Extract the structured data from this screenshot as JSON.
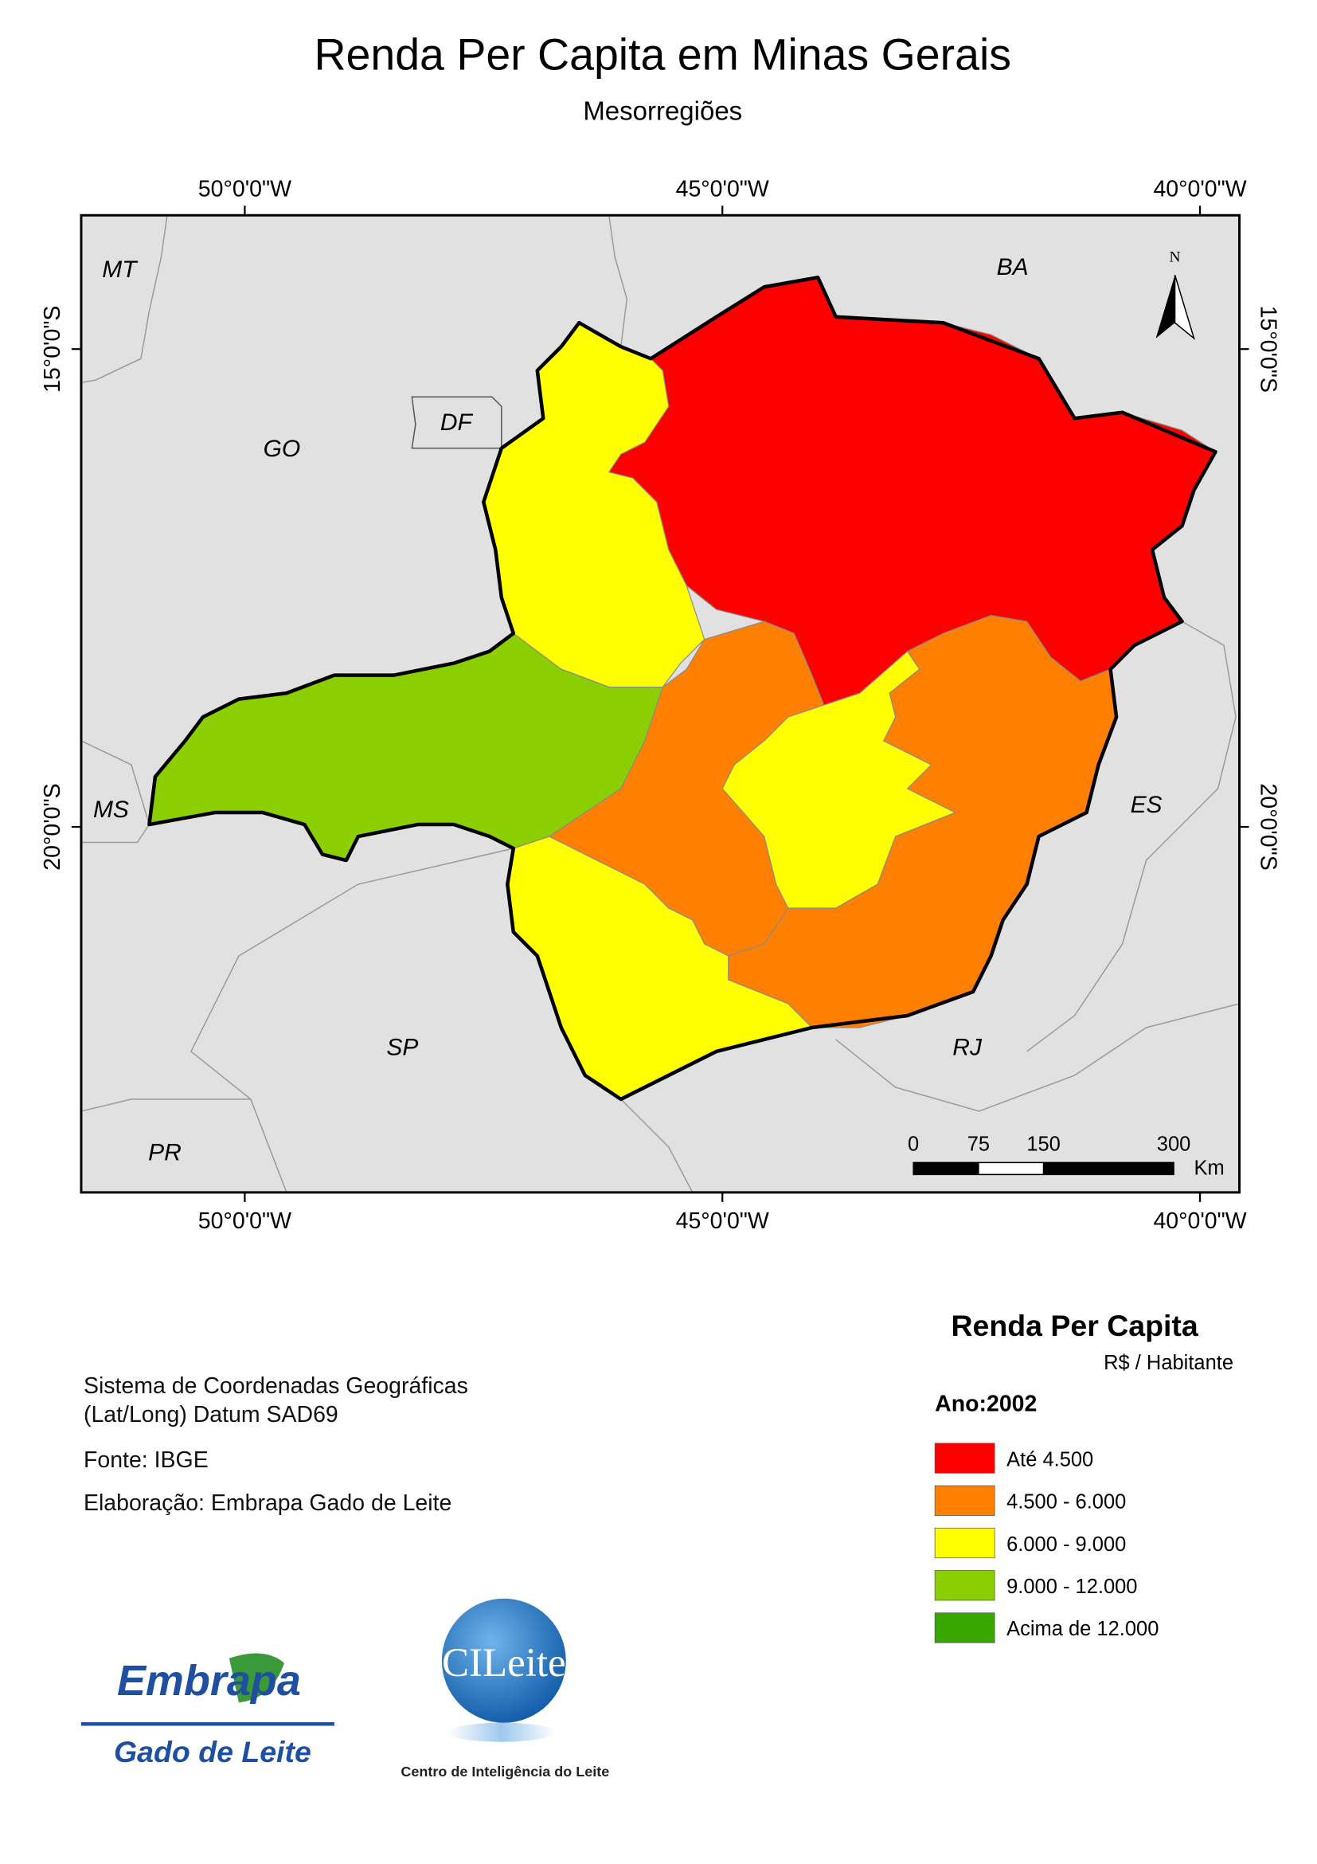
{
  "header": {
    "title": "Renda Per Capita em Minas Gerais",
    "subtitle": "Mesorregiões"
  },
  "map": {
    "longitude_labels": [
      "50°0'0\"W",
      "45°0'0\"W",
      "40°0'0\"W"
    ],
    "latitude_labels": [
      "15°0'0\"S",
      "20°0'0\"S"
    ],
    "north_arrow": "N",
    "state_labels": [
      "MT",
      "BA",
      "GO",
      "DF",
      "MS",
      "ES",
      "SP",
      "RJ",
      "PR"
    ],
    "scale_bar": {
      "ticks": [
        0,
        75,
        150,
        300
      ],
      "unit": "Km"
    }
  },
  "legend": {
    "title": "Renda Per Capita",
    "unit": "R$ / Habitante",
    "year": "Ano:2002",
    "classes": [
      {
        "label": "Até 4.500",
        "color": "#ff0000"
      },
      {
        "label": "4.500 - 6.000",
        "color": "#ff8000"
      },
      {
        "label": "6.000 - 9.000",
        "color": "#ffff00"
      },
      {
        "label": "9.000 - 12.000",
        "color": "#8ccf00"
      },
      {
        "label": "Acima de 12.000",
        "color": "#38a800"
      }
    ]
  },
  "notes": [
    "Sistema de Coordenadas Geográficas",
    "(Lat/Long) Datum SAD69",
    "Fonte: IBGE",
    "Elaboração: Embrapa Gado de Leite"
  ],
  "logos": {
    "embrapa": "Embrapa",
    "embrapa_unit": "Gado de Leite",
    "cileite": "CILeite",
    "cileite_caption": "Centro de Inteligência do Leite"
  }
}
